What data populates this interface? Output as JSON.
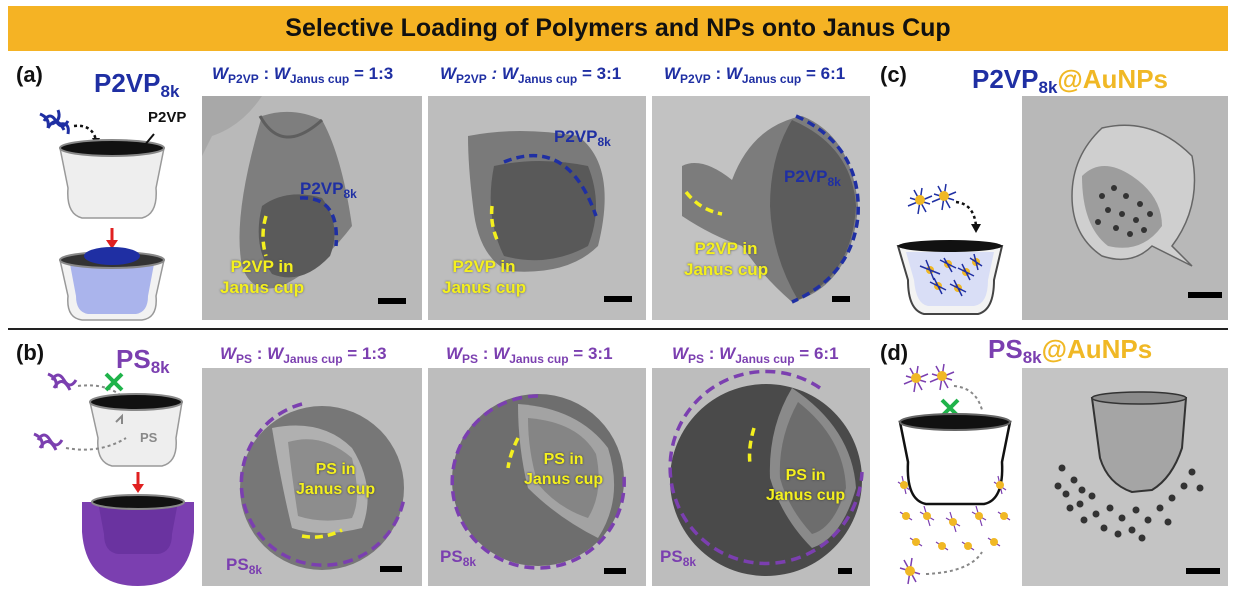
{
  "title": "Selective Loading of Polymers and NPs onto Janus Cup",
  "panels": {
    "a": {
      "letter": "(a)",
      "name": "P2VP",
      "name_sub": "8k",
      "label": "P2VP"
    },
    "b": {
      "letter": "(b)",
      "name": "PS",
      "name_sub": "8k",
      "label": "PS"
    },
    "c": {
      "letter": "(c)",
      "name_main": "P2VP",
      "name_sub": "8k",
      "name_np": "@AuNPs"
    },
    "d": {
      "letter": "(d)",
      "name_main": "PS",
      "name_sub": "8k",
      "name_np": "@AuNPs"
    }
  },
  "ratios": {
    "w": "W",
    "p2vp_sub": "P2VP",
    "ps_sub": "PS",
    "janus_sub": "Janus cup",
    "sep": " : ",
    "sep_italic": " : ",
    "r1": " = 1:3",
    "r2": " = 3:1",
    "r3": " = 6:1"
  },
  "annotations": {
    "p2vp_name": "P2VP",
    "p2vp_sub": "8k",
    "p2vp_in_1": "P2VP in",
    "p2vp_in_2": "Janus cup",
    "ps_name": "PS",
    "ps_sub": "8k",
    "ps_in_1": "PS in",
    "ps_in_2": "Janus cup"
  },
  "colors": {
    "banner": "#f5b324",
    "p2vp": "#1f2fa3",
    "ps": "#7b3fb0",
    "gold": "#f0b825",
    "highlight": "#f4f01e",
    "blocked": "#1fb34a"
  }
}
